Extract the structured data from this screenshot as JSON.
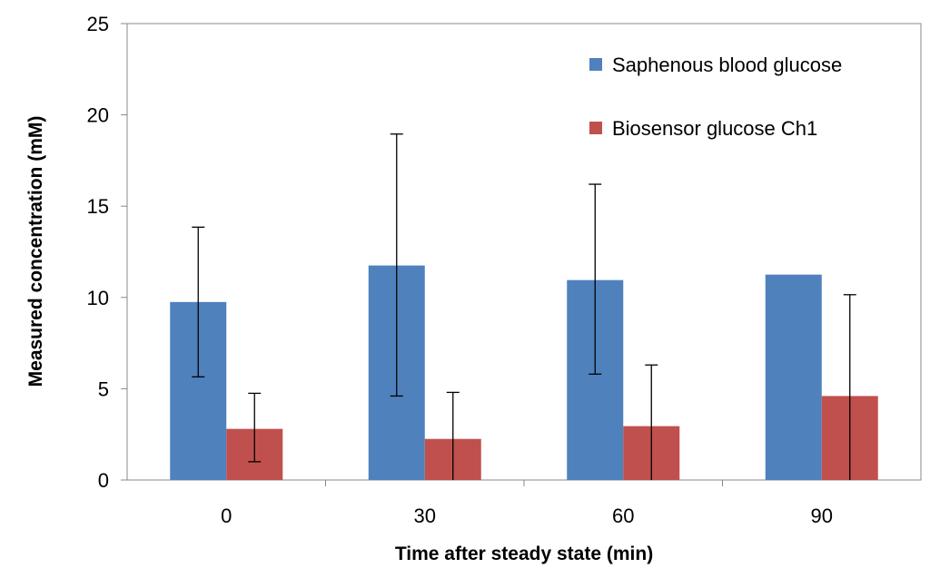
{
  "chart_data": {
    "type": "bar",
    "title": "",
    "xlabel": "Time after steady state (min)",
    "ylabel": "Measured concentration (mM)",
    "categories": [
      "0",
      "30",
      "60",
      "90"
    ],
    "ylim": [
      0,
      25
    ],
    "yticks": [
      0,
      5,
      10,
      15,
      20,
      25
    ],
    "grid": false,
    "legend_position": "top-right",
    "series": [
      {
        "name": "Saphenous blood glucose",
        "color": "#4F81BD",
        "values": [
          9.75,
          11.75,
          10.95,
          11.25
        ],
        "error_low": [
          5.65,
          4.6,
          5.8,
          null
        ],
        "error_high": [
          13.85,
          18.95,
          16.2,
          null
        ]
      },
      {
        "name": "Biosensor glucose Ch1",
        "color": "#C0504D",
        "values": [
          2.8,
          2.25,
          2.95,
          4.6
        ],
        "error_low": [
          1.0,
          0,
          0,
          0
        ],
        "error_high": [
          4.75,
          4.8,
          6.3,
          10.15
        ]
      }
    ]
  }
}
